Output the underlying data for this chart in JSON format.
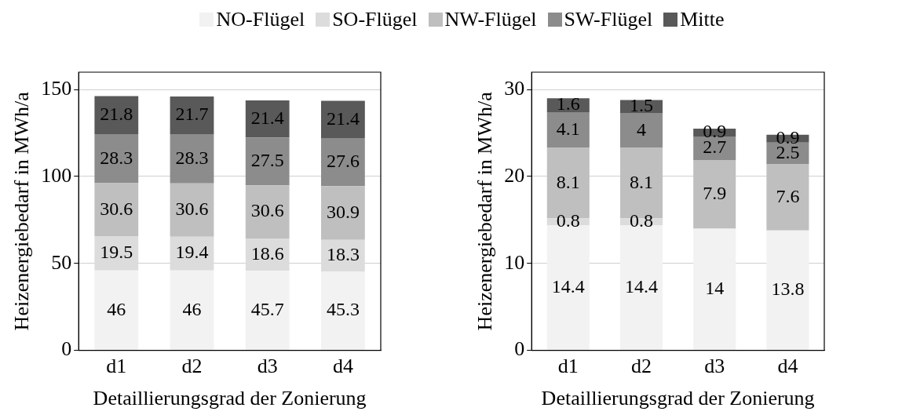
{
  "chart_data": [
    {
      "type": "bar",
      "stacked": true,
      "categories": [
        "d1",
        "d2",
        "d3",
        "d4"
      ],
      "xlabel": "Detaillierungsgrad der Zonierung",
      "ylabel": "Heizenergiebedarf in MWh/a",
      "ylim": [
        0,
        160
      ],
      "yticks": [
        0,
        50,
        100,
        150
      ],
      "grid": "y",
      "legend": "top",
      "data_labels": true,
      "series": [
        {
          "name": "NO-Flügel",
          "color": "#f2f2f2",
          "values": [
            46,
            46,
            45.7,
            45.3
          ]
        },
        {
          "name": "SO-Flügel",
          "color": "#dcdcdc",
          "values": [
            19.5,
            19.4,
            18.6,
            18.3
          ]
        },
        {
          "name": "NW-Flügel",
          "color": "#bfbfbf",
          "values": [
            30.6,
            30.6,
            30.6,
            30.9
          ]
        },
        {
          "name": "SW-Flügel",
          "color": "#8c8c8c",
          "values": [
            28.3,
            28.3,
            27.5,
            27.6
          ]
        },
        {
          "name": "Mitte",
          "color": "#595959",
          "values": [
            21.8,
            21.7,
            21.4,
            21.4
          ]
        }
      ]
    },
    {
      "type": "bar",
      "stacked": true,
      "categories": [
        "d1",
        "d2",
        "d3",
        "d4"
      ],
      "xlabel": "Detaillierungsgrad der Zonierung",
      "ylabel": "Heizenergiebedarf in MWh/a",
      "ylim": [
        0,
        32
      ],
      "yticks": [
        0,
        10,
        20,
        30
      ],
      "grid": "y",
      "data_labels": true,
      "series": [
        {
          "color": "#f2f2f2",
          "values": [
            14.4,
            14.4,
            14,
            13.8
          ]
        },
        {
          "color": "#dcdcdc",
          "values": [
            0.8,
            0.8,
            null,
            null
          ]
        },
        {
          "color": "#bfbfbf",
          "values": [
            8.1,
            8.1,
            7.9,
            7.6
          ]
        },
        {
          "color": "#8c8c8c",
          "values": [
            4.1,
            4,
            2.7,
            2.5
          ]
        },
        {
          "color": "#595959",
          "values": [
            1.6,
            1.5,
            0.9,
            0.9
          ]
        }
      ]
    }
  ]
}
